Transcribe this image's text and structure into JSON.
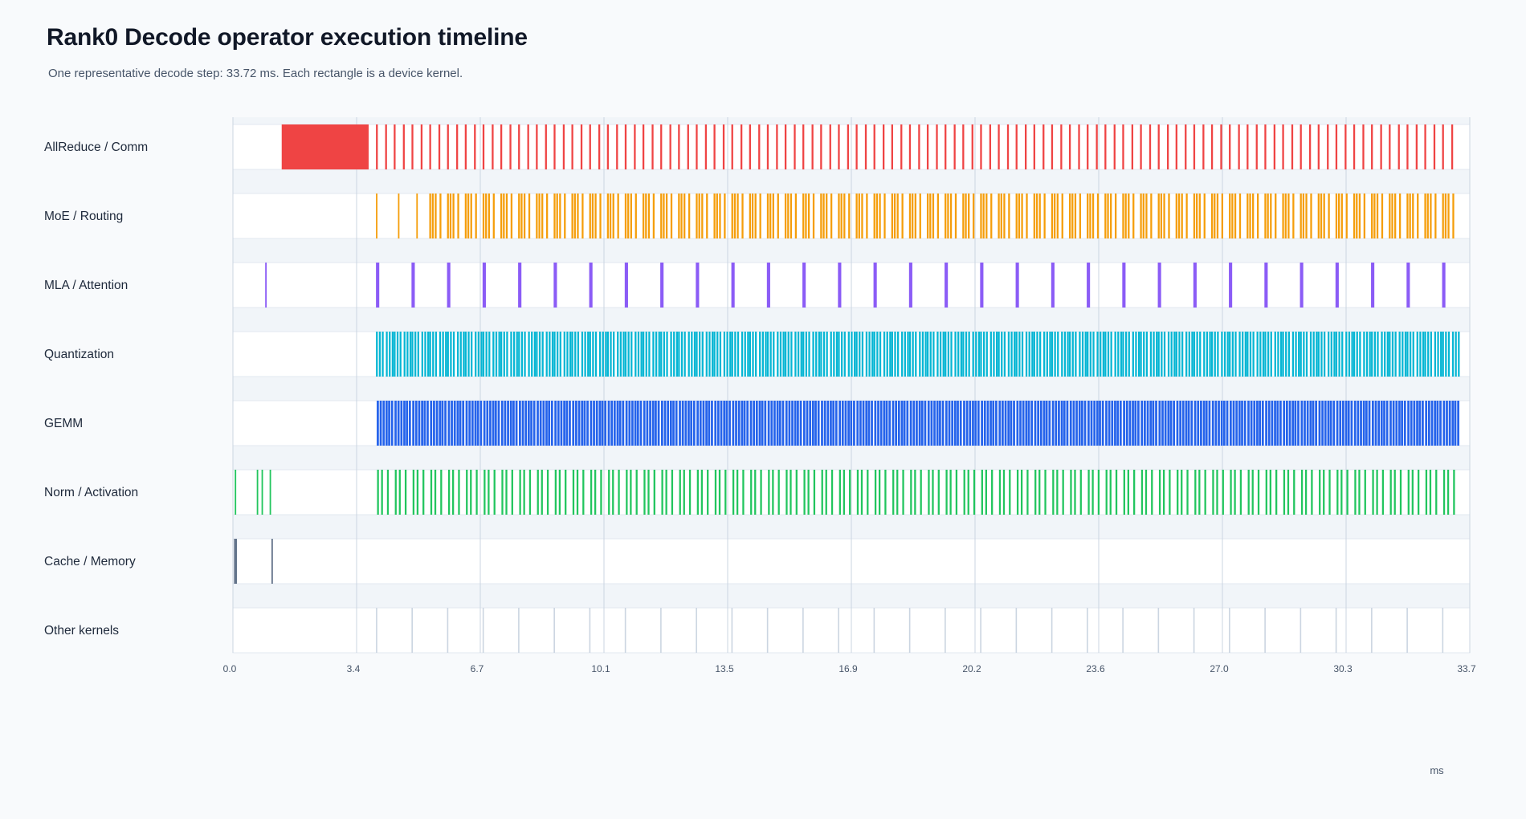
{
  "title": "Rank0 Decode operator execution timeline",
  "subtitle": "One representative decode step: 33.72 ms. Each rectangle is a device kernel.",
  "chart_data": {
    "type": "timeline",
    "title": "Rank0 Decode operator execution timeline",
    "xlabel": "ms",
    "xlim": [
      0,
      33.72
    ],
    "x_ticks": [
      "0.0",
      "3.4",
      "6.7",
      "10.1",
      "13.5",
      "16.9",
      "20.2",
      "23.6",
      "27.0",
      "30.3",
      "33.7"
    ],
    "grid": true,
    "lanes": [
      {
        "name": "AllReduce / Comm",
        "color": "#ef4444"
      },
      {
        "name": "MoE / Routing",
        "color": "#f59e0b"
      },
      {
        "name": "MLA / Attention",
        "color": "#8b5cf6"
      },
      {
        "name": "Quantization",
        "color": "#06b6d4"
      },
      {
        "name": "GEMM",
        "color": "#2563eb"
      },
      {
        "name": "Norm / Activation",
        "color": "#22c55e"
      },
      {
        "name": "Cache / Memory",
        "color": "#64748b"
      },
      {
        "name": "Other kernels",
        "color": "#cbd5e1"
      }
    ],
    "layers": {
      "start_ms": 3.9,
      "end_ms": 33.45,
      "count": 61
    },
    "kernels": {
      "AllReduce / Comm": [
        {
          "start": 1.33,
          "dur": 2.37
        },
        {
          "pattern": "per_layer",
          "offsets": [
            0.0,
            0.25
          ],
          "dur": 0.05
        }
      ],
      "MoE / Routing": [
        {
          "start": 3.9,
          "dur": 0.04
        },
        {
          "start": 4.5,
          "dur": 0.04
        },
        {
          "start": 5.0,
          "dur": 0.04
        },
        {
          "pattern": "per_layer",
          "from_layer": 3,
          "offsets": [
            0.0,
            0.07,
            0.15,
            0.28
          ],
          "dur": 0.05
        }
      ],
      "MLA / Attention": [
        {
          "start": 0.88,
          "dur": 0.04
        },
        {
          "pattern": "every_other_layer",
          "offsets": [
            0.0
          ],
          "dur": 0.09
        }
      ],
      "Quantization": [
        {
          "pattern": "per_layer",
          "offsets": [
            0.0,
            0.08,
            0.16,
            0.27,
            0.35,
            0.43
          ],
          "dur": 0.05
        }
      ],
      "GEMM": [
        {
          "pattern": "per_layer",
          "offsets": [
            0.02,
            0.1,
            0.18,
            0.26,
            0.33,
            0.41
          ],
          "dur": 0.06
        }
      ],
      "Norm / Activation": [
        {
          "start": 0.05,
          "dur": 0.04
        },
        {
          "start": 0.65,
          "dur": 0.04
        },
        {
          "start": 0.78,
          "dur": 0.04
        },
        {
          "start": 1.0,
          "dur": 0.04
        },
        {
          "pattern": "per_layer",
          "offsets": [
            0.03,
            0.14,
            0.3
          ],
          "dur": 0.05
        }
      ],
      "Cache / Memory": [
        {
          "start": 0.03,
          "dur": 0.08
        },
        {
          "start": 1.05,
          "dur": 0.04
        }
      ],
      "Other kernels": [
        {
          "pattern": "every_other_layer",
          "offsets": [
            0.0
          ],
          "dur": 0.03
        }
      ]
    }
  }
}
